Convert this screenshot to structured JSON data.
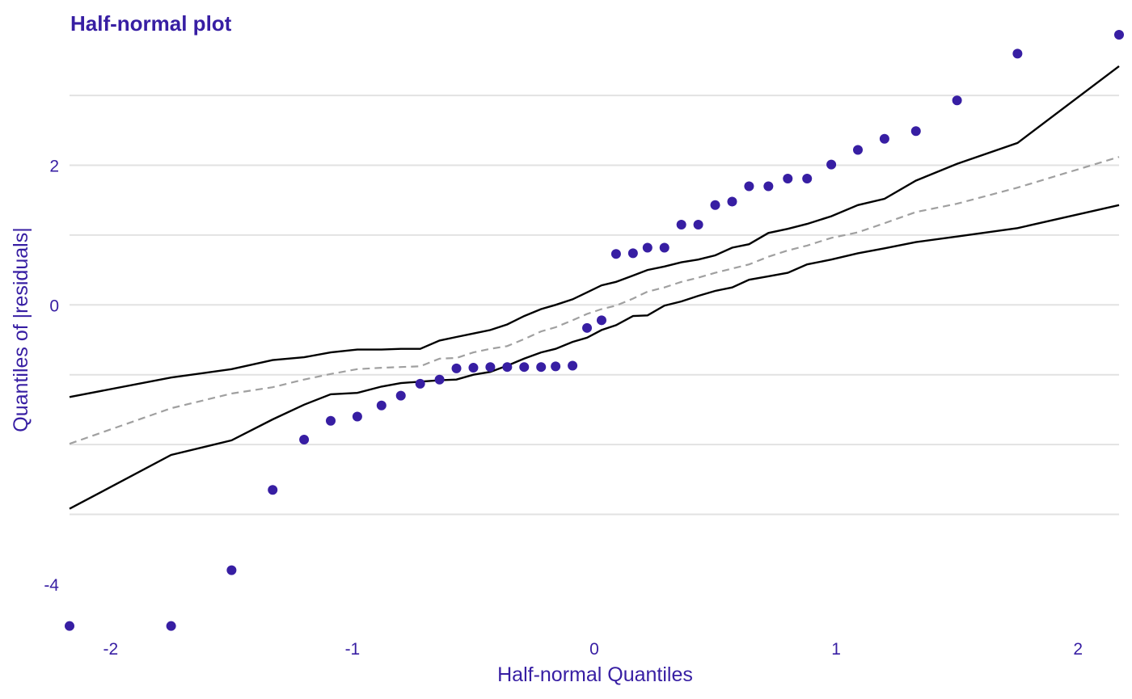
{
  "chart_data": {
    "type": "scatter",
    "title": "Half-normal plot",
    "xlabel": "Half-normal Quantiles",
    "ylabel": "Quantiles of |residuals|",
    "xlim": [
      -2.17,
      2.17
    ],
    "ylim": [
      -4.65,
      3.87
    ],
    "x_ticks": [
      -2,
      -1,
      0,
      1,
      2
    ],
    "x_tick_labels": [
      "-2",
      "-1",
      "0",
      "1",
      "2"
    ],
    "y_ticks": [
      -4,
      0,
      2
    ],
    "y_tick_labels": [
      "-4",
      "0",
      "2"
    ],
    "y_grid": [
      -3,
      -2,
      -1,
      0,
      1,
      2,
      3
    ],
    "grid": true,
    "legend": "none",
    "colors": {
      "points": "#371ea3",
      "text": "#371ea3",
      "envelope": "#000000",
      "median": "#a0a0a0",
      "grid": "#e2e2e2"
    },
    "points": {
      "x": [
        -2.17,
        -1.75,
        -1.5,
        -1.33,
        -1.2,
        -1.09,
        -0.98,
        -0.88,
        -0.8,
        -0.72,
        -0.64,
        -0.57,
        -0.5,
        -0.43,
        -0.36,
        -0.29,
        -0.22,
        -0.16,
        -0.09,
        -0.03,
        0.03,
        0.09,
        0.16,
        0.22,
        0.29,
        0.36,
        0.43,
        0.5,
        0.57,
        0.64,
        0.72,
        0.8,
        0.88,
        0.98,
        1.09,
        1.2,
        1.33,
        1.5,
        1.75,
        2.17
      ],
      "y": [
        -4.6,
        -4.6,
        -3.8,
        -2.65,
        -1.93,
        -1.66,
        -1.6,
        -1.44,
        -1.3,
        -1.13,
        -1.07,
        -0.91,
        -0.9,
        -0.89,
        -0.89,
        -0.89,
        -0.89,
        -0.88,
        -0.87,
        -0.33,
        -0.22,
        0.73,
        0.74,
        0.82,
        0.82,
        1.15,
        1.15,
        1.43,
        1.48,
        1.7,
        1.7,
        1.81,
        1.81,
        2.01,
        2.22,
        2.38,
        2.49,
        2.93,
        3.6,
        3.87
      ]
    },
    "series": [
      {
        "style": "solid",
        "x": [
          -2.17,
          -1.75,
          -1.5,
          -1.33,
          -1.2,
          -1.09,
          -0.98,
          -0.88,
          -0.8,
          -0.72,
          -0.64,
          -0.57,
          -0.5,
          -0.43,
          -0.36,
          -0.29,
          -0.22,
          -0.16,
          -0.09,
          -0.03,
          0.03,
          0.09,
          0.16,
          0.22,
          0.29,
          0.36,
          0.43,
          0.5,
          0.57,
          0.64,
          0.72,
          0.8,
          0.88,
          0.98,
          1.09,
          1.2,
          1.33,
          1.5,
          1.75,
          2.17
        ],
        "y": [
          -1.32,
          -1.04,
          -0.92,
          -0.79,
          -0.75,
          -0.68,
          -0.64,
          -0.64,
          -0.63,
          -0.63,
          -0.51,
          -0.46,
          -0.41,
          -0.36,
          -0.28,
          -0.16,
          -0.06,
          0.0,
          0.08,
          0.18,
          0.28,
          0.33,
          0.42,
          0.5,
          0.55,
          0.61,
          0.65,
          0.71,
          0.82,
          0.87,
          1.03,
          1.09,
          1.16,
          1.27,
          1.43,
          1.52,
          1.78,
          2.02,
          2.32,
          3.42
        ]
      },
      {
        "style": "solid",
        "x": [
          -2.17,
          -1.75,
          -1.5,
          -1.33,
          -1.2,
          -1.09,
          -0.98,
          -0.88,
          -0.8,
          -0.72,
          -0.64,
          -0.57,
          -0.5,
          -0.43,
          -0.36,
          -0.29,
          -0.22,
          -0.16,
          -0.09,
          -0.03,
          0.03,
          0.09,
          0.16,
          0.22,
          0.29,
          0.36,
          0.43,
          0.5,
          0.57,
          0.64,
          0.72,
          0.8,
          0.88,
          0.98,
          1.09,
          1.2,
          1.33,
          1.5,
          1.75,
          2.17
        ],
        "y": [
          -2.92,
          -2.15,
          -1.94,
          -1.64,
          -1.43,
          -1.28,
          -1.26,
          -1.17,
          -1.12,
          -1.1,
          -1.08,
          -1.07,
          -1.0,
          -0.96,
          -0.87,
          -0.77,
          -0.68,
          -0.63,
          -0.53,
          -0.47,
          -0.36,
          -0.29,
          -0.16,
          -0.15,
          -0.01,
          0.05,
          0.13,
          0.2,
          0.25,
          0.36,
          0.41,
          0.46,
          0.58,
          0.65,
          0.74,
          0.81,
          0.9,
          0.98,
          1.1,
          1.43
        ]
      },
      {
        "style": "dashed",
        "x": [
          -2.17,
          -1.75,
          -1.5,
          -1.33,
          -1.2,
          -1.09,
          -0.98,
          -0.88,
          -0.8,
          -0.72,
          -0.64,
          -0.57,
          -0.5,
          -0.43,
          -0.36,
          -0.29,
          -0.22,
          -0.16,
          -0.09,
          -0.03,
          0.03,
          0.09,
          0.16,
          0.22,
          0.29,
          0.36,
          0.43,
          0.5,
          0.57,
          0.64,
          0.72,
          0.8,
          0.88,
          0.98,
          1.09,
          1.2,
          1.33,
          1.5,
          1.75,
          2.17
        ],
        "y": [
          -1.99,
          -1.48,
          -1.27,
          -1.18,
          -1.07,
          -0.99,
          -0.92,
          -0.9,
          -0.89,
          -0.88,
          -0.77,
          -0.76,
          -0.68,
          -0.63,
          -0.59,
          -0.49,
          -0.38,
          -0.32,
          -0.22,
          -0.13,
          -0.06,
          -0.01,
          0.09,
          0.19,
          0.25,
          0.33,
          0.39,
          0.46,
          0.52,
          0.58,
          0.69,
          0.78,
          0.85,
          0.96,
          1.04,
          1.17,
          1.33,
          1.45,
          1.68,
          2.12
        ]
      }
    ]
  }
}
